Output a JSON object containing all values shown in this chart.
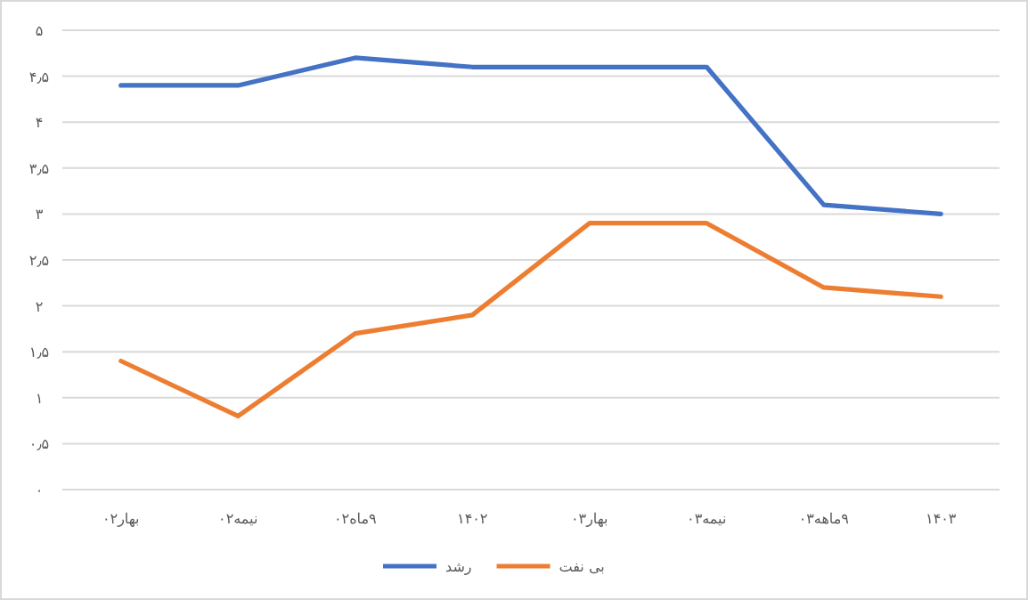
{
  "chart_data": {
    "type": "line",
    "categories": [
      "بهار۰۲",
      "نیمه۰۲",
      "۹ماه۰۲",
      "۱۴۰۲",
      "بهار۰۳",
      "نیمه۰۳",
      "۹ماهه۰۳",
      "۱۴۰۳"
    ],
    "series": [
      {
        "name": "رشد",
        "color": "#4472c4",
        "values": [
          4.4,
          4.4,
          4.7,
          4.6,
          4.6,
          4.6,
          3.1,
          3.0
        ]
      },
      {
        "name": "بی نفت",
        "color": "#ed7d31",
        "values": [
          1.4,
          0.8,
          1.7,
          1.9,
          2.9,
          2.9,
          2.2,
          2.1
        ]
      }
    ],
    "ylim": [
      0,
      5
    ],
    "yticks": [
      {
        "value": 0,
        "label": "۰"
      },
      {
        "value": 0.5,
        "label": "۰٫۵"
      },
      {
        "value": 1,
        "label": "۱"
      },
      {
        "value": 1.5,
        "label": "۱٫۵"
      },
      {
        "value": 2,
        "label": "۲"
      },
      {
        "value": 2.5,
        "label": "۲٫۵"
      },
      {
        "value": 3,
        "label": "۳"
      },
      {
        "value": 3.5,
        "label": "۳٫۵"
      },
      {
        "value": 4,
        "label": "۴"
      },
      {
        "value": 4.5,
        "label": "۴٫۵"
      },
      {
        "value": 5,
        "label": "۵"
      }
    ],
    "grid": "y",
    "legend": "bottom",
    "marker": "none",
    "line_style": "solid"
  }
}
